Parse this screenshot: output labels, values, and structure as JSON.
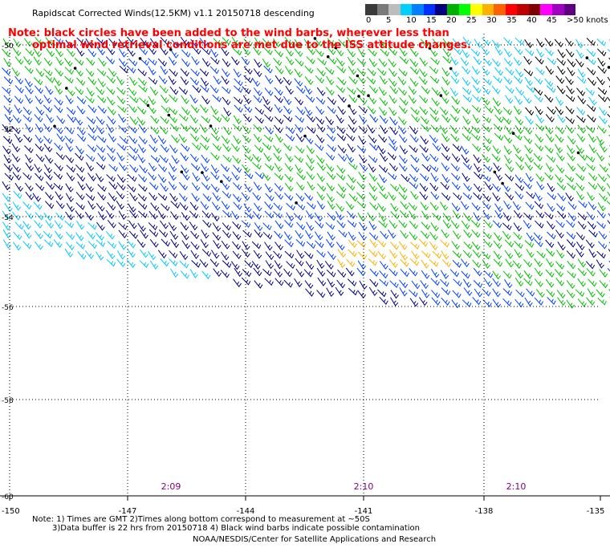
{
  "title": "Rapidscat Corrected Winds(12.5KM) v1.1 20150718 descending",
  "notes": {
    "line1": "Note: black circles have been added to the wind barbs, wherever less than",
    "line2": "optimal wind retrieval conditions are met due to the ISS attitude changes."
  },
  "legend": {
    "labels": [
      "0",
      "5",
      "10",
      "15",
      "20",
      "25",
      "30",
      "35",
      "40",
      "45",
      ">50 knots"
    ],
    "colors": [
      "#3a3a3a",
      "#7a7a7a",
      "#bdbdbd",
      "#00d0ff",
      "#0080ff",
      "#0030ff",
      "#000080",
      "#00b000",
      "#00ff00",
      "#ffff00",
      "#ffb000",
      "#ff6000",
      "#ff0000",
      "#c00000",
      "#800000",
      "#ff00ff",
      "#a000c0",
      "#600080"
    ]
  },
  "axes": {
    "lat_labels": [
      "-50",
      "-52",
      "-54",
      "-56",
      "-58",
      "-60"
    ],
    "lon_labels": [
      "-150",
      "-147",
      "-144",
      "-141",
      "-138",
      "-135"
    ]
  },
  "times": [
    "2:09",
    "2:10",
    "2:10"
  ],
  "footnotes": {
    "line1": "Note: 1) Times are GMT 2)Times along bottom correspond to measurement at ~50S",
    "line2": "3)Data buffer is 22 hrs from 20150718 4) Black wind barbs indicate possible contamination",
    "line3": "NOAA/NESDIS/Center for Satellite Applications and Research"
  },
  "colors": {
    "navy": "#000080",
    "blue": "#0040ff",
    "cyan": "#00c8ff",
    "green": "#00c000",
    "yellow": "#ffb000",
    "black": "#000000",
    "note_red": "#ff0000",
    "time_purple": "#800080"
  }
}
